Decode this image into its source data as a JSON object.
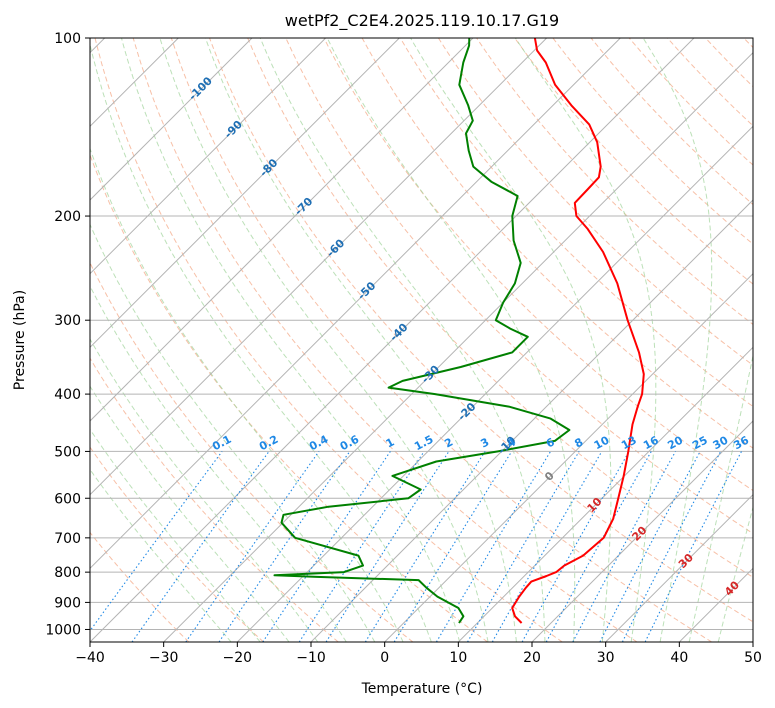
{
  "chart_data": {
    "type": "line",
    "title": "wetPf2_C2E4.2025.119.10.17.G19",
    "xlabel": "Temperature (°C)",
    "ylabel": "Pressure (hPa)",
    "xlim": [
      -40,
      50
    ],
    "ylim": [
      1050,
      100
    ],
    "y_scale": "log",
    "skew": true,
    "grid": true,
    "x_ticks": [
      "−40",
      "−30",
      "−20",
      "−10",
      "0",
      "10",
      "20",
      "30",
      "40",
      "50"
    ],
    "x_tick_values": [
      -40,
      -30,
      -20,
      -10,
      0,
      10,
      20,
      30,
      40,
      50
    ],
    "y_ticks": [
      "100",
      "200",
      "300",
      "400",
      "500",
      "600",
      "700",
      "800",
      "900",
      "1000"
    ],
    "y_tick_values": [
      100,
      200,
      300,
      400,
      500,
      600,
      700,
      800,
      900,
      1000
    ],
    "series": [
      {
        "role": "temperature",
        "color": "#ff0000",
        "points": [
          {
            "p": 975,
            "t": 16.0
          },
          {
            "p": 950,
            "t": 14.2
          },
          {
            "p": 920,
            "t": 12.7
          },
          {
            "p": 880,
            "t": 12.1
          },
          {
            "p": 850,
            "t": 11.8
          },
          {
            "p": 830,
            "t": 11.7
          },
          {
            "p": 812,
            "t": 13.0
          },
          {
            "p": 800,
            "t": 13.8
          },
          {
            "p": 780,
            "t": 14.0
          },
          {
            "p": 750,
            "t": 15.2
          },
          {
            "p": 700,
            "t": 15.6
          },
          {
            "p": 650,
            "t": 14.3
          },
          {
            "p": 600,
            "t": 12.2
          },
          {
            "p": 550,
            "t": 9.9
          },
          {
            "p": 500,
            "t": 7.2
          },
          {
            "p": 450,
            "t": 4.1
          },
          {
            "p": 420,
            "t": 2.4
          },
          {
            "p": 400,
            "t": 1.3
          },
          {
            "p": 370,
            "t": -1.2
          },
          {
            "p": 340,
            "t": -4.8
          },
          {
            "p": 300,
            "t": -10.7
          },
          {
            "p": 260,
            "t": -17.1
          },
          {
            "p": 230,
            "t": -23.3
          },
          {
            "p": 210,
            "t": -28.6
          },
          {
            "p": 200,
            "t": -31.8
          },
          {
            "p": 190,
            "t": -33.8
          },
          {
            "p": 180,
            "t": -33.9
          },
          {
            "p": 172,
            "t": -34.0
          },
          {
            "p": 165,
            "t": -35.2
          },
          {
            "p": 150,
            "t": -39.0
          },
          {
            "p": 140,
            "t": -42.5
          },
          {
            "p": 130,
            "t": -47.5
          },
          {
            "p": 120,
            "t": -52.5
          },
          {
            "p": 110,
            "t": -56.8
          },
          {
            "p": 105,
            "t": -59.6
          },
          {
            "p": 100,
            "t": -61.6
          }
        ]
      },
      {
        "role": "dewpoint",
        "color": "#008000",
        "points": [
          {
            "p": 975,
            "t": 7.5
          },
          {
            "p": 950,
            "t": 7.2
          },
          {
            "p": 920,
            "t": 5.4
          },
          {
            "p": 880,
            "t": 1.0
          },
          {
            "p": 850,
            "t": -1.7
          },
          {
            "p": 825,
            "t": -3.8
          },
          {
            "p": 815,
            "t": -18.0
          },
          {
            "p": 810,
            "t": -24.0
          },
          {
            "p": 800,
            "t": -15.0
          },
          {
            "p": 780,
            "t": -13.3
          },
          {
            "p": 750,
            "t": -15.3
          },
          {
            "p": 700,
            "t": -26.3
          },
          {
            "p": 660,
            "t": -30.2
          },
          {
            "p": 640,
            "t": -31.0
          },
          {
            "p": 620,
            "t": -26.0
          },
          {
            "p": 600,
            "t": -16.3
          },
          {
            "p": 580,
            "t": -15.8
          },
          {
            "p": 550,
            "t": -21.5
          },
          {
            "p": 520,
            "t": -17.5
          },
          {
            "p": 500,
            "t": -10.5
          },
          {
            "p": 480,
            "t": -4.2
          },
          {
            "p": 460,
            "t": -3.7
          },
          {
            "p": 440,
            "t": -7.8
          },
          {
            "p": 420,
            "t": -15.1
          },
          {
            "p": 400,
            "t": -26.8
          },
          {
            "p": 390,
            "t": -34.0
          },
          {
            "p": 380,
            "t": -33.0
          },
          {
            "p": 360,
            "t": -27.0
          },
          {
            "p": 340,
            "t": -22.0
          },
          {
            "p": 320,
            "t": -22.0
          },
          {
            "p": 310,
            "t": -25.5
          },
          {
            "p": 300,
            "t": -28.6
          },
          {
            "p": 280,
            "t": -30.0
          },
          {
            "p": 260,
            "t": -31.0
          },
          {
            "p": 240,
            "t": -33.0
          },
          {
            "p": 220,
            "t": -37.0
          },
          {
            "p": 200,
            "t": -40.5
          },
          {
            "p": 185,
            "t": -42.5
          },
          {
            "p": 175,
            "t": -48.0
          },
          {
            "p": 165,
            "t": -52.5
          },
          {
            "p": 155,
            "t": -55.3
          },
          {
            "p": 145,
            "t": -58.0
          },
          {
            "p": 138,
            "t": -58.8
          },
          {
            "p": 130,
            "t": -61.5
          },
          {
            "p": 120,
            "t": -65.5
          },
          {
            "p": 110,
            "t": -68.0
          },
          {
            "p": 103,
            "t": -69.5
          },
          {
            "p": 100,
            "t": -70.5
          }
        ]
      }
    ],
    "reference_lines": {
      "isotherms_color": "#b4b4b4",
      "dry_adiabats_color": "#f4a582",
      "moist_adiabats_color": "#a6d5a0",
      "mixing_ratio_color": "#1e88e5",
      "isobar_color": "#b4b4b4"
    },
    "annotations": {
      "upper_isotherm_labels": [
        {
          "text": "-100",
          "t": -100,
          "p": 122
        },
        {
          "text": "-90",
          "t": -90,
          "p": 143
        },
        {
          "text": "-80",
          "t": -80,
          "p": 166
        },
        {
          "text": "-70",
          "t": -70,
          "p": 193
        },
        {
          "text": "-60",
          "t": -60,
          "p": 227
        },
        {
          "text": "-50",
          "t": -50,
          "p": 268
        },
        {
          "text": "-40",
          "t": -40,
          "p": 315
        },
        {
          "text": "-30",
          "t": -30,
          "p": 371
        },
        {
          "text": "-20",
          "t": -20,
          "p": 429
        },
        {
          "text": "-10",
          "t": -10,
          "p": 489
        }
      ],
      "lower_isotherm_labels": [
        {
          "text": "0",
          "t": 0,
          "p": 552,
          "color": "#808080"
        },
        {
          "text": "10",
          "t": 10,
          "p": 617,
          "color": "#d62728"
        },
        {
          "text": "20",
          "t": 20,
          "p": 690,
          "color": "#d62728"
        },
        {
          "text": "30",
          "t": 30,
          "p": 767,
          "color": "#d62728"
        },
        {
          "text": "40",
          "t": 40,
          "p": 854,
          "color": "#d62728"
        }
      ],
      "mixing_ratio_labels": [
        {
          "text": "0.1",
          "w": 0.1
        },
        {
          "text": "0.2",
          "w": 0.2
        },
        {
          "text": "0.4",
          "w": 0.4
        },
        {
          "text": "0.6",
          "w": 0.6
        },
        {
          "text": "1",
          "w": 1
        },
        {
          "text": "1.5",
          "w": 1.5
        },
        {
          "text": "2",
          "w": 2
        },
        {
          "text": "3",
          "w": 3
        },
        {
          "text": "4",
          "w": 4
        },
        {
          "text": "6",
          "w": 6
        },
        {
          "text": "8",
          "w": 8
        },
        {
          "text": "10",
          "w": 10
        },
        {
          "text": "13",
          "w": 13
        },
        {
          "text": "16",
          "w": 16
        },
        {
          "text": "20",
          "w": 20
        },
        {
          "text": "25",
          "w": 25
        },
        {
          "text": "30",
          "w": 30
        },
        {
          "text": "36",
          "w": 36
        }
      ],
      "mixing_ratio_label_pressure": 500
    }
  }
}
